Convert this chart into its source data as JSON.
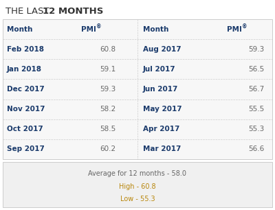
{
  "title_normal": "THE LAST ",
  "title_bold": "12 MONTHS",
  "left_months": [
    "Feb 2018",
    "Jan 2018",
    "Dec 2017",
    "Nov 2017",
    "Oct 2017",
    "Sep 2017"
  ],
  "left_pmi": [
    "60.8",
    "59.1",
    "59.3",
    "58.2",
    "58.5",
    "60.2"
  ],
  "right_months": [
    "Aug 2017",
    "Jul 2017",
    "Jun 2017",
    "May 2017",
    "Apr 2017",
    "Mar 2017"
  ],
  "right_pmi": [
    "59.3",
    "56.5",
    "56.7",
    "55.5",
    "55.3",
    "56.6"
  ],
  "avg_text": "Average for 12 months - 58.0",
  "high_text": "High - 60.8",
  "low_text": "Low - 55.3",
  "bg_color": "#ffffff",
  "table_bg": "#f7f7f7",
  "summary_bg": "#f0f0f0",
  "header_color": "#1a3a6b",
  "data_color": "#666666",
  "month_color": "#1a3a6b",
  "summary_avg_color": "#666666",
  "summary_high_color": "#b8860b",
  "summary_low_color": "#b8860b",
  "border_color": "#cccccc",
  "title_color": "#333333",
  "title_fs": 9.5,
  "header_fs": 7.5,
  "data_fs": 7.5,
  "summary_fs": 7.0
}
